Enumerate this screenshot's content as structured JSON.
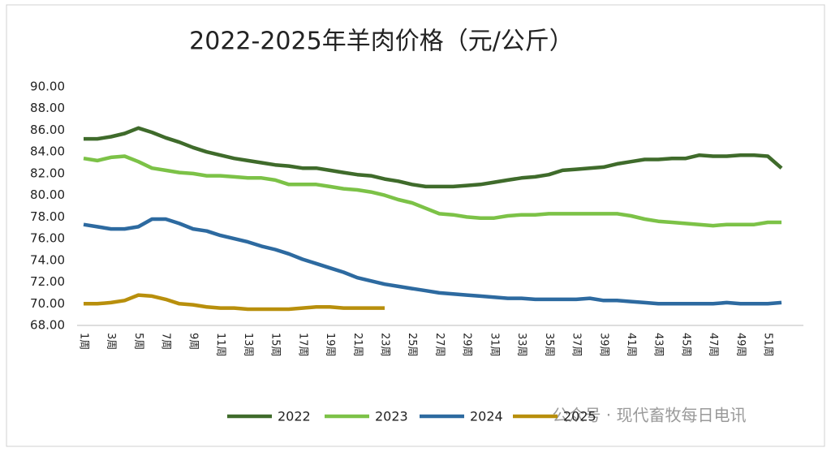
{
  "chart_data": {
    "type": "line",
    "title": "2022-2025年羊肉价格（元/公斤）",
    "watermark": "公众号 · 现代畜牧每日电讯",
    "categories": [
      "1周",
      null,
      "3周",
      null,
      "5周",
      null,
      "7周",
      null,
      "9周",
      null,
      "11周",
      null,
      "13周",
      null,
      "15周",
      null,
      "17周",
      null,
      "19周",
      null,
      "21周",
      null,
      "23周",
      null,
      "25周",
      null,
      "27周",
      null,
      "29周",
      null,
      "31周",
      null,
      "33周",
      null,
      "35周",
      null,
      "37周",
      null,
      "39周",
      null,
      "41周",
      null,
      "43周",
      null,
      "45周",
      null,
      "47周",
      null,
      "49周",
      null,
      "51周",
      null
    ],
    "ylim": [
      68,
      90
    ],
    "yticks": [
      {
        "value": 68,
        "label": "68.00"
      },
      {
        "value": 70,
        "label": "70.00"
      },
      {
        "value": 72,
        "label": "72.00"
      },
      {
        "value": 74,
        "label": "74.00"
      },
      {
        "value": 76,
        "label": "76.00"
      },
      {
        "value": 78,
        "label": "78.00"
      },
      {
        "value": 80,
        "label": "80.00"
      },
      {
        "value": 82,
        "label": "82.00"
      },
      {
        "value": 84,
        "label": "84.00"
      },
      {
        "value": 86,
        "label": "86.00"
      },
      {
        "value": 88,
        "label": "88.00"
      },
      {
        "value": 90,
        "label": "90.00"
      }
    ],
    "grid": false,
    "legend": "bottom",
    "series": [
      {
        "name": "2022",
        "color": "#3f6b2b",
        "values": [
          85.2,
          85.2,
          85.4,
          85.7,
          86.2,
          85.8,
          85.3,
          84.9,
          84.4,
          84.0,
          83.7,
          83.4,
          83.2,
          83.0,
          82.8,
          82.7,
          82.5,
          82.5,
          82.3,
          82.1,
          81.9,
          81.8,
          81.5,
          81.3,
          81.0,
          80.8,
          80.8,
          80.8,
          80.9,
          81.0,
          81.2,
          81.4,
          81.6,
          81.7,
          81.9,
          82.3,
          82.4,
          82.5,
          82.6,
          82.9,
          83.1,
          83.3,
          83.3,
          83.4,
          83.4,
          83.7,
          83.6,
          83.6,
          83.7,
          83.7,
          83.6,
          82.5
        ]
      },
      {
        "name": "2023",
        "color": "#7cc247",
        "values": [
          83.4,
          83.2,
          83.5,
          83.6,
          83.1,
          82.5,
          82.3,
          82.1,
          82.0,
          81.8,
          81.8,
          81.7,
          81.6,
          81.6,
          81.4,
          81.0,
          81.0,
          81.0,
          80.8,
          80.6,
          80.5,
          80.3,
          80.0,
          79.6,
          79.3,
          78.8,
          78.3,
          78.2,
          78.0,
          77.9,
          77.9,
          78.1,
          78.2,
          78.2,
          78.3,
          78.3,
          78.3,
          78.3,
          78.3,
          78.3,
          78.1,
          77.8,
          77.6,
          77.5,
          77.4,
          77.3,
          77.2,
          77.3,
          77.3,
          77.3,
          77.5,
          77.5
        ]
      },
      {
        "name": "2024",
        "color": "#2d6aa0",
        "values": [
          77.3,
          77.1,
          76.9,
          76.9,
          77.1,
          77.8,
          77.8,
          77.4,
          76.9,
          76.7,
          76.3,
          76.0,
          75.7,
          75.3,
          75.0,
          74.6,
          74.1,
          73.7,
          73.3,
          72.9,
          72.4,
          72.1,
          71.8,
          71.6,
          71.4,
          71.2,
          71.0,
          70.9,
          70.8,
          70.7,
          70.6,
          70.5,
          70.5,
          70.4,
          70.4,
          70.4,
          70.4,
          70.5,
          70.3,
          70.3,
          70.2,
          70.1,
          70.0,
          70.0,
          70.0,
          70.0,
          70.0,
          70.1,
          70.0,
          70.0,
          70.0,
          70.1
        ]
      },
      {
        "name": "2025",
        "color": "#b88f0c",
        "values": [
          70.0,
          70.0,
          70.1,
          70.3,
          70.8,
          70.7,
          70.4,
          70.0,
          69.9,
          69.7,
          69.6,
          69.6,
          69.5,
          69.5,
          69.5,
          69.5,
          69.6,
          69.7,
          69.7,
          69.6,
          69.6,
          69.6,
          69.6,
          null,
          null,
          null,
          null,
          null,
          null,
          null,
          null,
          null,
          null,
          null,
          null,
          null,
          null,
          null,
          null,
          null,
          null,
          null,
          null,
          null,
          null,
          null,
          null,
          null,
          null,
          null,
          null,
          null
        ]
      }
    ]
  }
}
